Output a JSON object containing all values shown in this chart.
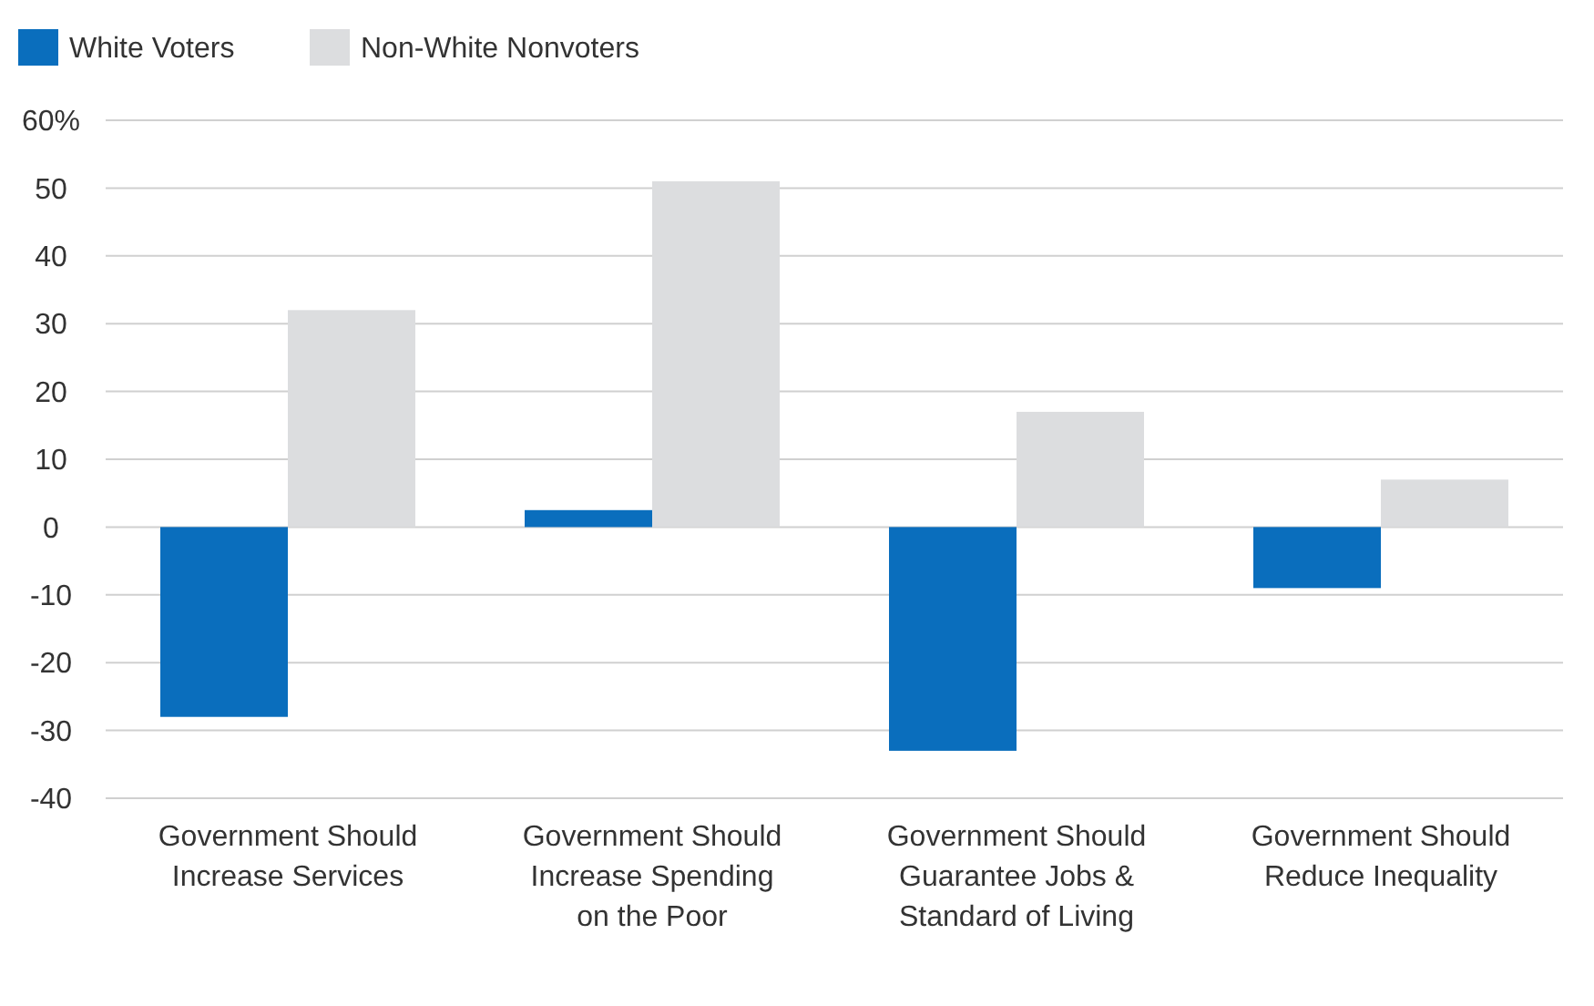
{
  "chart_data": {
    "type": "bar",
    "categories": [
      "Government Should Increase Services",
      "Government Should Increase Spending on the Poor",
      "Government Should Guarantee Jobs & Standard of Living",
      "Government Should Reduce Inequality"
    ],
    "series": [
      {
        "name": "White Voters",
        "color": "#0a6ebd",
        "values": [
          -28,
          2.5,
          -33,
          -9
        ]
      },
      {
        "name": "Non-White Nonvoters",
        "color": "#dcdddf",
        "values": [
          32,
          51,
          17,
          7
        ]
      }
    ],
    "ylim": [
      -40,
      60
    ],
    "yticks": [
      -40,
      -30,
      -20,
      -10,
      0,
      10,
      20,
      30,
      40,
      50,
      {
        "value": 60,
        "label": "60%"
      }
    ],
    "grid": "y",
    "legend": "top left"
  }
}
